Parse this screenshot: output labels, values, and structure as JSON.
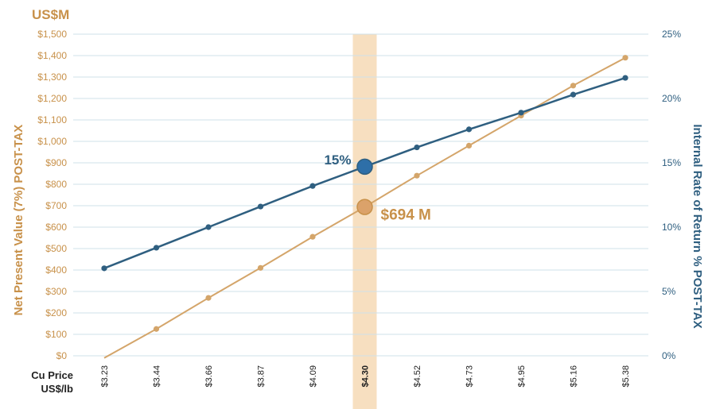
{
  "chart_data": {
    "type": "line",
    "x_label_lines": [
      "Cu Price",
      "US$/lb"
    ],
    "left_axis": {
      "unit_label": "US$M",
      "title": "Net Present Value (7%) POST-TAX",
      "ylim": [
        0,
        1500
      ],
      "ticks": [
        "$0",
        "$100",
        "$200",
        "$300",
        "$400",
        "$500",
        "$600",
        "$700",
        "$800",
        "$900",
        "$1,000",
        "$1,100",
        "$1,200",
        "$1,300",
        "$1,400",
        "$1,500"
      ]
    },
    "right_axis": {
      "title": "Internal Rate of Return % POST-TAX",
      "ylim": [
        0,
        25
      ],
      "ticks": [
        "0%",
        "5%",
        "10%",
        "15%",
        "20%",
        "25%"
      ]
    },
    "categories": [
      "$3.23",
      "$3.44",
      "$3.66",
      "$3.87",
      "$4.09",
      "$4.30",
      "$4.52",
      "$4.73",
      "$4.95",
      "$5.16",
      "$5.38"
    ],
    "series": [
      {
        "axis": "left",
        "color": "#d4a56a",
        "values": [
          -10,
          125,
          270,
          410,
          555,
          694,
          840,
          980,
          1120,
          1260,
          1390
        ]
      },
      {
        "axis": "right",
        "color": "#2f5f80",
        "values": [
          6.8,
          8.4,
          10.0,
          11.6,
          13.2,
          14.7,
          16.2,
          17.6,
          18.9,
          20.3,
          21.6
        ]
      }
    ],
    "highlight": {
      "category": "$4.30",
      "band_color": "#f7dfc0",
      "npv_label": "$694 M",
      "irr_label": "15%"
    },
    "grid": true
  }
}
